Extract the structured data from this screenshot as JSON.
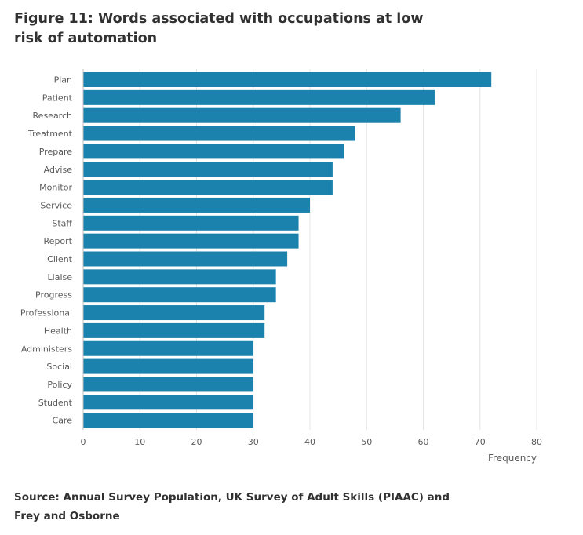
{
  "figure": {
    "title": "Figure 11: Words associated with occupations at low risk of automation",
    "source": "Source: Annual Survey Population, UK Survey of Adult Skills (PIAAC) and Frey and Osborne"
  },
  "colors": {
    "bar": "#1a82ad",
    "grid": "#e4e4e4",
    "axis": "#bfbfbf",
    "text": "#5a5a5a"
  },
  "chart_data": {
    "type": "bar",
    "orientation": "horizontal",
    "categories": [
      "Plan",
      "Patient",
      "Research",
      "Treatment",
      "Prepare",
      "Advise",
      "Monitor",
      "Service",
      "Staff",
      "Report",
      "Client",
      "Liaise",
      "Progress",
      "Professional",
      "Health",
      "Administers",
      "Social",
      "Policy",
      "Student",
      "Care"
    ],
    "values": [
      72,
      62,
      56,
      48,
      46,
      44,
      44,
      40,
      38,
      38,
      36,
      34,
      34,
      32,
      32,
      30,
      30,
      30,
      30,
      30
    ],
    "xlabel": "Frequency",
    "ylabel": "",
    "xlim": [
      0,
      80
    ],
    "xticks": [
      0,
      10,
      20,
      30,
      40,
      50,
      60,
      70,
      80
    ],
    "grid": true,
    "legend": "none"
  }
}
